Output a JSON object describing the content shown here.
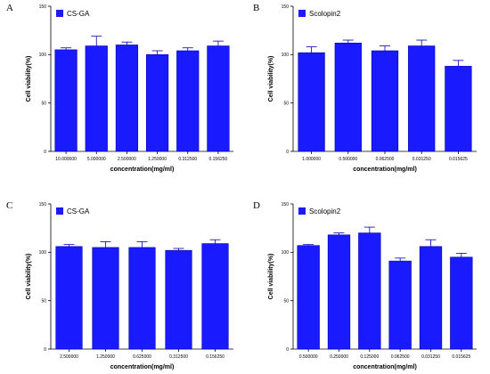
{
  "colors": {
    "bar": "#1a1aff",
    "bar_stroke": "#0000b0",
    "axis": "#000000"
  },
  "chart_data": [
    {
      "panel": "A",
      "type": "bar",
      "legend": "CS-GA",
      "categories": [
        "10.000000",
        "5.000000",
        "2.500000",
        "1.250000",
        "0.312500",
        "0.156250"
      ],
      "values": [
        105,
        109,
        110,
        100,
        104,
        109
      ],
      "errors": [
        2,
        10,
        3,
        4,
        3,
        5
      ],
      "xlabel": "concentration(mg/ml)",
      "ylabel": "Cell viability(%)",
      "ylim": [
        0,
        150
      ],
      "yticks": [
        0,
        50,
        100,
        150
      ],
      "grid": false,
      "legend_position": "top-left"
    },
    {
      "panel": "B",
      "type": "bar",
      "legend": "Scolopin2",
      "categories": [
        "1.000000",
        "0.500000",
        "0.062500",
        "0.031250",
        "0.015625"
      ],
      "values": [
        102,
        112,
        104,
        109,
        88
      ],
      "errors": [
        6,
        3,
        5,
        6,
        6
      ],
      "xlabel": "concentration(mg/ml)",
      "ylabel": "Cell viability(%)",
      "ylim": [
        0,
        150
      ],
      "yticks": [
        0,
        50,
        100,
        150
      ],
      "grid": false,
      "legend_position": "top-left"
    },
    {
      "panel": "C",
      "type": "bar",
      "legend": "CS-GA",
      "categories": [
        "2.500000",
        "1.250000",
        "0.625000",
        "0.312500",
        "0.156250"
      ],
      "values": [
        106,
        105,
        105,
        102,
        109
      ],
      "errors": [
        2,
        6,
        6,
        2,
        4
      ],
      "xlabel": "concentration(mg/ml)",
      "ylabel": "Cell viability(%)",
      "ylim": [
        0,
        150
      ],
      "yticks": [
        0,
        50,
        100,
        150
      ],
      "grid": false,
      "legend_position": "top-left"
    },
    {
      "panel": "D",
      "type": "bar",
      "legend": "Scolopin2",
      "categories": [
        "0.500000",
        "0.250000",
        "0.125000",
        "0.062500",
        "0.031250",
        "0.015625"
      ],
      "values": [
        107,
        118,
        120,
        91,
        106,
        95
      ],
      "errors": [
        1,
        2,
        6,
        3,
        7,
        4
      ],
      "xlabel": "concentration(mg/ml)",
      "ylabel": "Cell viability(%)",
      "ylim": [
        0,
        150
      ],
      "yticks": [
        0,
        50,
        100,
        150
      ],
      "grid": false,
      "legend_position": "top-left"
    }
  ]
}
